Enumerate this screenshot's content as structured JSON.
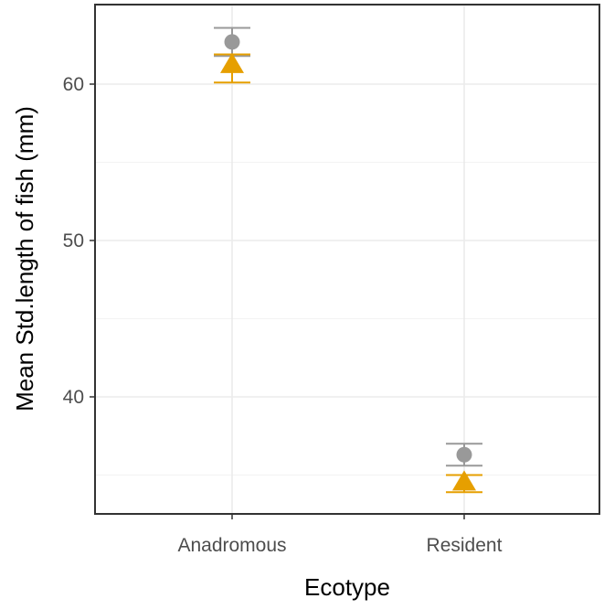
{
  "chart_data": {
    "type": "scatter",
    "title": "",
    "xlabel": "Ecotype",
    "ylabel": "Mean Std.length of fish (mm)",
    "categories": [
      "Anadromous",
      "Resident"
    ],
    "ylim": [
      32.5,
      65.0
    ],
    "yticks": [
      40,
      50,
      60
    ],
    "grid": true,
    "legend": "none",
    "series": [
      {
        "marker": "circle",
        "color": "#999999",
        "values": [
          62.7,
          36.3
        ],
        "error_low": [
          61.8,
          35.6
        ],
        "error_high": [
          63.6,
          37.0
        ]
      },
      {
        "marker": "triangle",
        "color": "#E69F00",
        "values": [
          61.2,
          34.5
        ],
        "error_low": [
          60.1,
          33.9
        ],
        "error_high": [
          61.9,
          35.0
        ]
      }
    ]
  }
}
